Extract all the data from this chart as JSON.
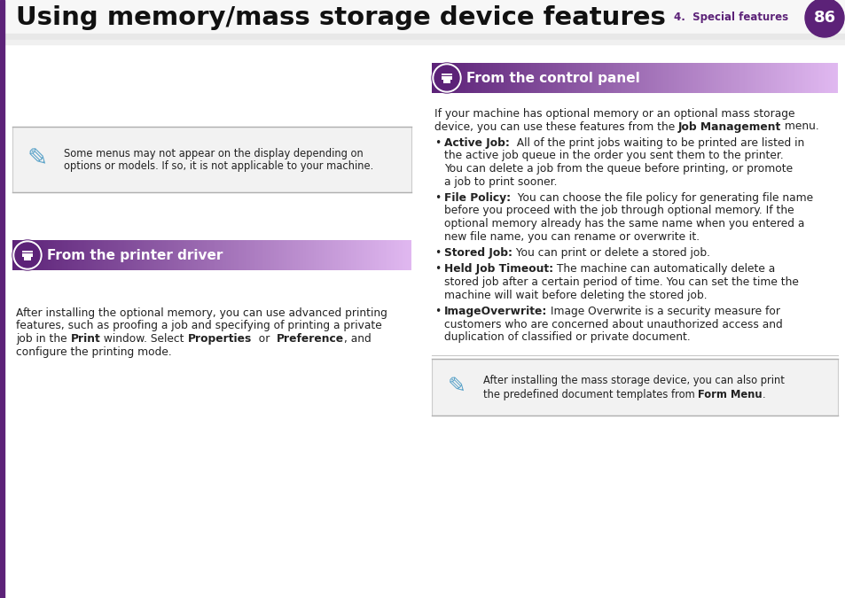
{
  "title": "Using memory/mass storage device features",
  "chapter_label": "4.  Special features",
  "page_num": "86",
  "bg_color": "#ffffff",
  "purple_dark": "#5c2278",
  "purple_light": "#e0b8f0",
  "gray_bg": "#f0f0f0",
  "note_bg": "#f0f0f0",
  "divider_color": "#c8c8c8",
  "text_color": "#222222",
  "white": "#ffffff",
  "left_bar_color": "#5c2278",
  "s1_title": "From the printer driver",
  "s2_title": "From the control panel",
  "note1_l1": "Some menus may not appear on the display depending on",
  "note1_l2": "options or models. If so, it is not applicable to your machine.",
  "s1_body_lines": [
    "After installing the optional memory, you can use advanced printing",
    "features, such as proofing a job and specifying of printing a private",
    [
      "job in the ",
      "Print",
      " window. Select ",
      "Properties",
      "  or  ",
      "Preference",
      ", and"
    ],
    "configure the printing mode."
  ],
  "s2_intro_lines": [
    "If your machine has optional memory or an optional mass storage",
    [
      "device, you can use these features from the ",
      "Job Management",
      " menu."
    ]
  ],
  "bullets": [
    {
      "bold": "Active Job:",
      "lines": [
        "  All of the print jobs waiting to be printed are listed in",
        "the active job queue in the order you sent them to the printer.",
        "You can delete a job from the queue before printing, or promote",
        "a job to print sooner."
      ]
    },
    {
      "bold": "File Policy:",
      "lines": [
        "  You can choose the file policy for generating file name",
        "before you proceed with the job through optional memory. If the",
        "optional memory already has the same name when you entered a",
        "new file name, you can rename or overwrite it."
      ]
    },
    {
      "bold": "Stored Job:",
      "lines": [
        " You can print or delete a stored job."
      ]
    },
    {
      "bold": "Held Job Timeout:",
      "lines": [
        " The machine can automatically delete a",
        "stored job after a certain period of time. You can set the time the",
        "machine will wait before deleting the stored job."
      ]
    },
    {
      "bold": "ImageOverwrite:",
      "lines": [
        " Image Overwrite is a security measure for",
        "customers who are concerned about unauthorized access and",
        "duplication of classified or private document."
      ]
    }
  ],
  "note2_l1": "After installing the mass storage device, you can also print",
  "note2_l2a": "the predefined document templates from ",
  "note2_l2b": "Form Menu",
  "note2_l2c": "."
}
